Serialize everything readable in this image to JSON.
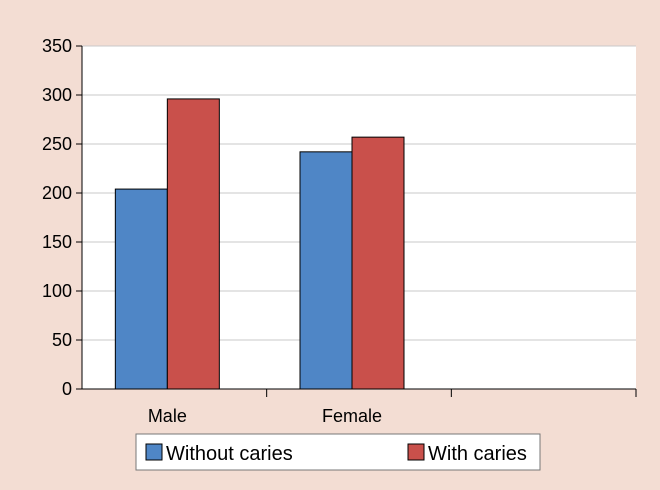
{
  "chart_data": {
    "type": "bar",
    "categories": [
      "Male",
      "Female",
      ""
    ],
    "series": [
      {
        "name": "Without caries",
        "values": [
          204,
          242,
          null
        ],
        "color": "#4f86c6"
      },
      {
        "name": "With caries",
        "values": [
          296,
          257,
          null
        ],
        "color": "#c9504b"
      }
    ],
    "y_ticks": [
      0,
      50,
      100,
      150,
      200,
      250,
      300,
      350
    ],
    "ylim": [
      0,
      350
    ],
    "grid": true,
    "legend_placement": "bottom-center"
  },
  "colors": {
    "page_background": "#f3ddd3",
    "plot_background": "#ffffff",
    "gridline": "#c8c8c8",
    "axis": "#000000"
  }
}
